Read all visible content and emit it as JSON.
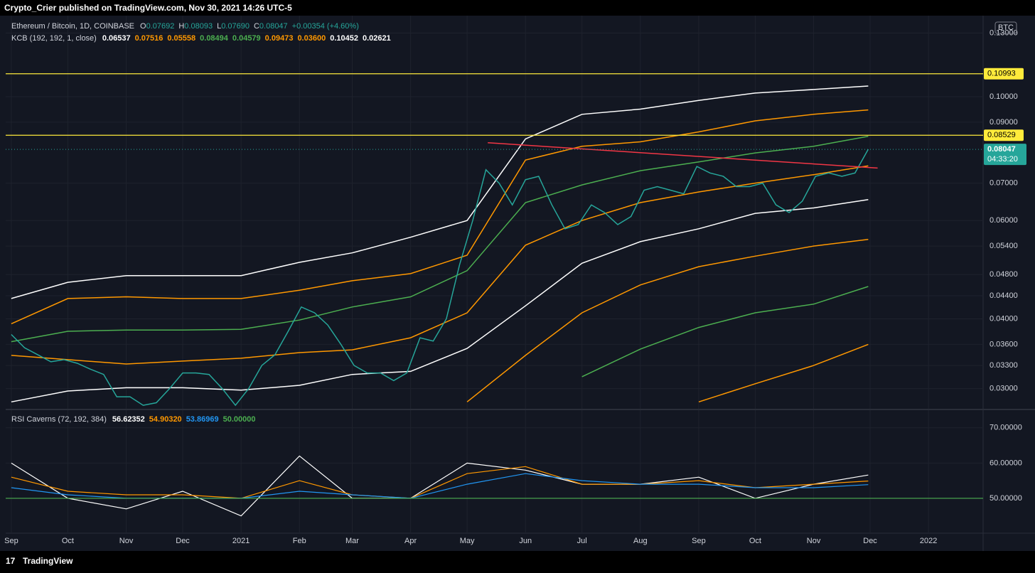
{
  "header": {
    "title": "Crypto_Crier published on TradingView.com, Nov 30, 2021 14:26 UTC-5"
  },
  "footer": {
    "brand": "TradingView"
  },
  "chart_data": [
    {
      "type": "line",
      "log_scale": true,
      "axis_unit": "BTC",
      "legend_title": "Ethereum / Bitcoin, 1D, COINBASE",
      "ohlc": [
        {
          "key": "O",
          "text": "0.07692"
        },
        {
          "key": "H",
          "text": "0.08093"
        },
        {
          "key": "L",
          "text": "0.07690"
        },
        {
          "key": "C",
          "text": "0.08047"
        }
      ],
      "change": "+0.00354 (+4.60%)",
      "indicator": "KCB (192, 192, 1, close)",
      "indicator_values": [
        {
          "text": "0.06537",
          "color": "#ffffff"
        },
        {
          "text": "0.07516",
          "color": "#ff9800"
        },
        {
          "text": "0.05558",
          "color": "#ff9800"
        },
        {
          "text": "0.08494",
          "color": "#4caf50"
        },
        {
          "text": "0.04579",
          "color": "#4caf50"
        },
        {
          "text": "0.09473",
          "color": "#ff9800"
        },
        {
          "text": "0.03600",
          "color": "#ff9800"
        },
        {
          "text": "0.10452",
          "color": "#ffffff"
        },
        {
          "text": "0.02621",
          "color": "#ffffff"
        }
      ],
      "xlim": [
        "2020-08-29",
        "2022-01-30"
      ],
      "ylim": [
        0.0276,
        0.1397
      ],
      "xticks": [
        {
          "value": "2020-09-01",
          "label": "Sep"
        },
        {
          "value": "2020-10-01",
          "label": "Oct"
        },
        {
          "value": "2020-11-01",
          "label": "Nov"
        },
        {
          "value": "2020-12-01",
          "label": "Dec"
        },
        {
          "value": "2021-01-01",
          "label": "2021"
        },
        {
          "value": "2021-02-01",
          "label": "Feb"
        },
        {
          "value": "2021-03-01",
          "label": "Mar"
        },
        {
          "value": "2021-04-01",
          "label": "Apr"
        },
        {
          "value": "2021-05-01",
          "label": "May"
        },
        {
          "value": "2021-06-01",
          "label": "Jun"
        },
        {
          "value": "2021-07-01",
          "label": "Jul"
        },
        {
          "value": "2021-08-01",
          "label": "Aug"
        },
        {
          "value": "2021-09-01",
          "label": "Sep"
        },
        {
          "value": "2021-10-01",
          "label": "Oct"
        },
        {
          "value": "2021-11-01",
          "label": "Nov"
        },
        {
          "value": "2021-12-01",
          "label": "Dec"
        },
        {
          "value": "2022-01-01",
          "label": "2022"
        }
      ],
      "yticks": [
        {
          "value": 0.13,
          "label": "0.13000"
        },
        {
          "value": 0.1,
          "label": "0.10000"
        },
        {
          "value": 0.09,
          "label": "0.09000"
        },
        {
          "value": 0.07,
          "label": "0.07000"
        },
        {
          "value": 0.06,
          "label": "0.06000"
        },
        {
          "value": 0.054,
          "label": "0.05400"
        },
        {
          "value": 0.048,
          "label": "0.04800"
        },
        {
          "value": 0.044,
          "label": "0.04400"
        },
        {
          "value": 0.04,
          "label": "0.04000"
        },
        {
          "value": 0.036,
          "label": "0.03600"
        },
        {
          "value": 0.033,
          "label": "0.03300"
        },
        {
          "value": 0.03,
          "label": "0.03000"
        }
      ],
      "grid": true,
      "price": {
        "color": "#26a69a",
        "x": [
          "2020-09-01",
          "2020-09-08",
          "2020-09-15",
          "2020-09-22",
          "2020-09-29",
          "2020-10-06",
          "2020-10-13",
          "2020-10-20",
          "2020-10-27",
          "2020-11-03",
          "2020-11-10",
          "2020-11-17",
          "2020-11-24",
          "2020-12-01",
          "2020-12-08",
          "2020-12-15",
          "2020-12-22",
          "2020-12-29",
          "2021-01-05",
          "2021-01-12",
          "2021-01-19",
          "2021-01-26",
          "2021-02-02",
          "2021-02-09",
          "2021-02-16",
          "2021-02-23",
          "2021-03-02",
          "2021-03-09",
          "2021-03-16",
          "2021-03-23",
          "2021-03-30",
          "2021-04-06",
          "2021-04-13",
          "2021-04-20",
          "2021-04-27",
          "2021-05-04",
          "2021-05-11",
          "2021-05-18",
          "2021-05-25",
          "2021-06-01",
          "2021-06-08",
          "2021-06-15",
          "2021-06-22",
          "2021-06-29",
          "2021-07-06",
          "2021-07-13",
          "2021-07-20",
          "2021-07-27",
          "2021-08-03",
          "2021-08-10",
          "2021-08-17",
          "2021-08-24",
          "2021-08-31",
          "2021-09-07",
          "2021-09-14",
          "2021-09-21",
          "2021-09-28",
          "2021-10-05",
          "2021-10-12",
          "2021-10-19",
          "2021-10-26",
          "2021-11-02",
          "2021-11-09",
          "2021-11-16",
          "2021-11-23",
          "2021-11-30"
        ],
        "values": [
          0.0375,
          0.0355,
          0.0345,
          0.0335,
          0.0338,
          0.0333,
          0.0325,
          0.0318,
          0.029,
          0.029,
          0.028,
          0.0283,
          0.03,
          0.032,
          0.032,
          0.0318,
          0.03,
          0.028,
          0.03,
          0.033,
          0.0345,
          0.038,
          0.042,
          0.041,
          0.039,
          0.036,
          0.033,
          0.032,
          0.032,
          0.031,
          0.032,
          0.037,
          0.0365,
          0.04,
          0.05,
          0.06,
          0.074,
          0.07,
          0.064,
          0.071,
          0.072,
          0.064,
          0.058,
          0.059,
          0.064,
          0.062,
          0.059,
          0.061,
          0.068,
          0.069,
          0.068,
          0.067,
          0.075,
          0.073,
          0.072,
          0.069,
          0.069,
          0.07,
          0.064,
          0.062,
          0.065,
          0.072,
          0.073,
          0.072,
          0.073,
          0.0805
        ]
      },
      "bands_x": [
        "2020-09-01",
        "2020-10-01",
        "2020-11-01",
        "2020-12-01",
        "2021-01-01",
        "2021-02-01",
        "2021-03-01",
        "2021-04-01",
        "2021-05-01",
        "2021-06-01",
        "2021-07-01",
        "2021-08-01",
        "2021-09-01",
        "2021-10-01",
        "2021-11-01",
        "2021-11-30"
      ],
      "bands": [
        {
          "color": "#ffffff",
          "values": [
            0.0435,
            0.0465,
            0.0478,
            0.0478,
            0.0478,
            0.0505,
            0.0525,
            0.056,
            0.06,
            0.084,
            0.093,
            0.095,
            0.0985,
            0.1015,
            0.103,
            0.1045
          ]
        },
        {
          "color": "#ff9800",
          "values": [
            0.0392,
            0.0435,
            0.0438,
            0.0435,
            0.0435,
            0.045,
            0.0468,
            0.0482,
            0.052,
            0.077,
            0.0815,
            0.083,
            0.0865,
            0.0905,
            0.093,
            0.0947
          ]
        },
        {
          "color": "#4caf50",
          "values": [
            0.0364,
            0.038,
            0.0382,
            0.0382,
            0.0383,
            0.0398,
            0.042,
            0.0438,
            0.0488,
            0.0646,
            0.0695,
            0.0737,
            0.0764,
            0.0793,
            0.0815,
            0.0849
          ]
        },
        {
          "color": "#ff9800",
          "values": [
            0.0344,
            0.0338,
            0.0332,
            0.0336,
            0.034,
            0.0348,
            0.0352,
            0.037,
            0.041,
            0.0542,
            0.06,
            0.0646,
            0.0675,
            0.07,
            0.0725,
            0.0752
          ]
        },
        {
          "color": "#ffffff",
          "values": [
            0.0284,
            0.0297,
            0.0301,
            0.0301,
            0.0298,
            0.0304,
            0.0318,
            0.0322,
            0.0354,
            0.0422,
            0.0503,
            0.055,
            0.058,
            0.0618,
            0.0632,
            0.0654
          ]
        },
        {
          "color": "#ff9800",
          "values": [
            null,
            null,
            null,
            null,
            null,
            null,
            null,
            null,
            0.0284,
            0.0344,
            0.041,
            0.046,
            0.0496,
            0.0518,
            0.054,
            0.0555
          ]
        },
        {
          "color": "#4caf50",
          "values": [
            null,
            null,
            null,
            null,
            null,
            null,
            null,
            null,
            null,
            null,
            0.0315,
            0.0353,
            0.0386,
            0.041,
            0.0425,
            0.0457
          ]
        },
        {
          "color": "#ff9800",
          "values": [
            null,
            null,
            null,
            null,
            null,
            null,
            null,
            null,
            null,
            null,
            null,
            null,
            0.0284,
            0.0306,
            0.033,
            0.036
          ]
        }
      ],
      "hlines": [
        {
          "value": 0.10993,
          "label": "0.10993",
          "color": "#ffeb3b"
        },
        {
          "value": 0.08529,
          "label": "0.08529",
          "color": "#ffeb3b"
        }
      ],
      "last_price": {
        "value": 0.08047,
        "label": "0.08047",
        "countdown": "04:33:20",
        "color": "#26a69a"
      },
      "trendline": {
        "color": "#f23645",
        "x": [
          "2021-05-12",
          "2021-12-05"
        ],
        "values": [
          0.0827,
          0.0745
        ]
      }
    },
    {
      "type": "line",
      "legend_title": "RSI Caverns (72, 192, 384)",
      "legend_values": [
        {
          "text": "56.62352",
          "color": "#ffffff"
        },
        {
          "text": "54.90320",
          "color": "#ff9800"
        },
        {
          "text": "53.86969",
          "color": "#2196f3"
        },
        {
          "text": "50.00000",
          "color": "#4caf50"
        }
      ],
      "ylim": [
        40.3,
        75
      ],
      "yticks": [
        {
          "value": 70,
          "label": "70.00000"
        },
        {
          "value": 60,
          "label": "60.00000"
        },
        {
          "value": 50,
          "label": "50.00000"
        }
      ],
      "x": [
        "2020-09-01",
        "2020-10-01",
        "2020-11-01",
        "2020-12-01",
        "2021-01-01",
        "2021-02-01",
        "2021-03-01",
        "2021-04-01",
        "2021-05-01",
        "2021-06-01",
        "2021-07-01",
        "2021-08-01",
        "2021-09-01",
        "2021-10-01",
        "2021-11-01",
        "2021-11-30"
      ],
      "series": [
        {
          "color": "#ffffff",
          "values": [
            60,
            50,
            47,
            52,
            45,
            62,
            50,
            50,
            60,
            58,
            54,
            54,
            56,
            50,
            54,
            56.6
          ]
        },
        {
          "color": "#ff9800",
          "values": [
            56,
            52,
            51,
            51,
            50,
            55,
            51,
            50,
            57,
            59,
            54,
            54,
            55,
            53,
            54,
            54.9
          ]
        },
        {
          "color": "#2196f3",
          "values": [
            53,
            51,
            50,
            50,
            50,
            52,
            51,
            50,
            54,
            57,
            55,
            54,
            54,
            53,
            53,
            53.87
          ]
        }
      ],
      "hline": {
        "value": 50,
        "color": "#4caf50"
      }
    }
  ]
}
